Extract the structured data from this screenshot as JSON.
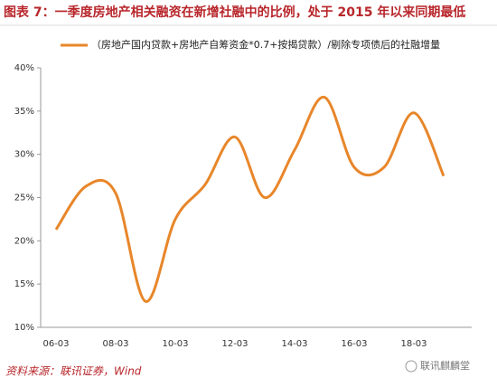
{
  "chart_data": {
    "type": "line",
    "title": "图表 7：一季度房地产相关融资在新增社融中的比例，处于 2015 年以来同期最低",
    "categories": [
      "06-03",
      null,
      "08-03",
      null,
      "10-03",
      null,
      "12-03",
      null,
      "14-03",
      null,
      "16-03",
      null,
      "18-03",
      null
    ],
    "series": [
      {
        "name": "（房地产国内贷款+房地产自筹资金*0.7+按揭贷款）/剔除专项债后的社融增量",
        "color": "#e8862a",
        "values": [
          21.3,
          26.3,
          25.5,
          13.0,
          22.5,
          26.5,
          32.0,
          25.0,
          30.5,
          36.6,
          28.5,
          28.5,
          34.8,
          27.5
        ]
      }
    ],
    "ylim": [
      10,
      40
    ],
    "yticks": [
      {
        "value": 10,
        "label": "10%"
      },
      {
        "value": 15,
        "label": "15%"
      },
      {
        "value": 20,
        "label": "20%"
      },
      {
        "value": 25,
        "label": "25%"
      },
      {
        "value": 30,
        "label": "30%"
      },
      {
        "value": 35,
        "label": "35%"
      },
      {
        "value": 40,
        "label": "40%"
      }
    ],
    "source": "资料来源：联讯证券，Wind",
    "watermark": "联讯麒麟堂"
  }
}
